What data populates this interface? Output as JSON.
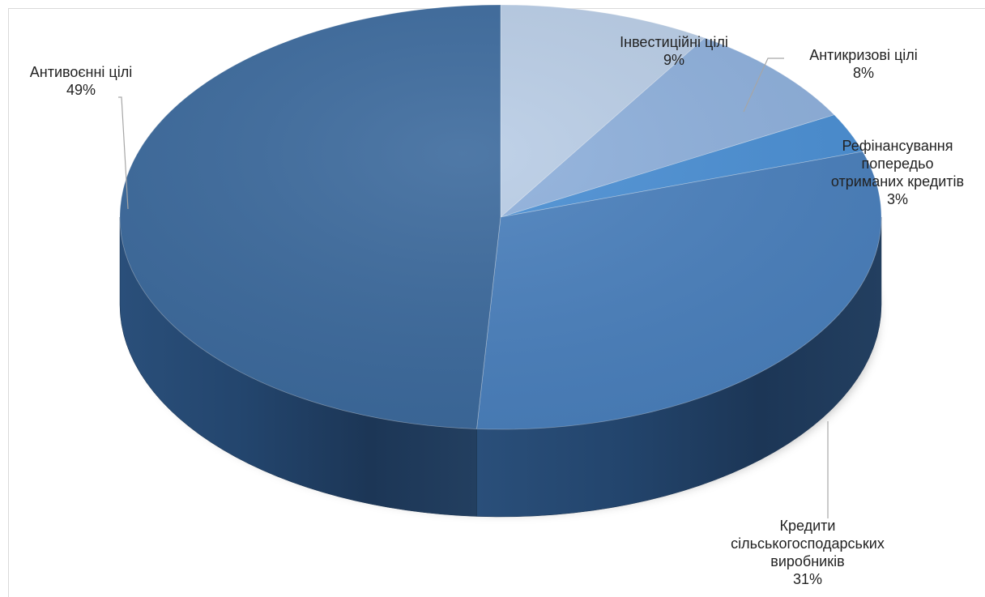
{
  "chart_data": {
    "type": "pie",
    "title": "",
    "three_d": true,
    "slices": [
      {
        "name": "Інвестиційні цілі",
        "value": 9,
        "value_label": "9%",
        "color": "#b9cde6",
        "label_lines": [
          "Інвестиційні цілі"
        ]
      },
      {
        "name": "Антикризові цілі",
        "value": 8,
        "value_label": "8%",
        "color": "#8eb0dc",
        "label_lines": [
          "Антикризові цілі"
        ]
      },
      {
        "name": "Рефінансування попередьо отриманих кредитів",
        "value": 3,
        "value_label": "3%",
        "color": "#4a8fd4",
        "label_lines": [
          "Рефінансування",
          "попередьо",
          "отриманих кредитів"
        ]
      },
      {
        "name": "Кредити сільськогосподарських виробників",
        "value": 31,
        "value_label": "31%",
        "color": "#4a80bd",
        "label_lines": [
          "Кредити",
          "сільськогосподарських",
          "виробників"
        ]
      },
      {
        "name": "Антивоєнні цілі",
        "value": 49,
        "value_label": "49%",
        "color": "#3c6a9d",
        "label_lines": [
          "Антивоєнні цілі"
        ]
      }
    ]
  }
}
